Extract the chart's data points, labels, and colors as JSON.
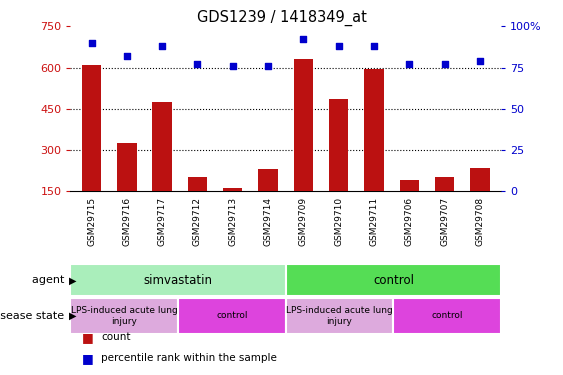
{
  "title": "GDS1239 / 1418349_at",
  "samples": [
    "GSM29715",
    "GSM29716",
    "GSM29717",
    "GSM29712",
    "GSM29713",
    "GSM29714",
    "GSM29709",
    "GSM29710",
    "GSM29711",
    "GSM29706",
    "GSM29707",
    "GSM29708"
  ],
  "counts": [
    610,
    325,
    475,
    200,
    162,
    230,
    630,
    485,
    595,
    190,
    200,
    235
  ],
  "percentiles": [
    90,
    82,
    88,
    77,
    76,
    76,
    92,
    88,
    88,
    77,
    77,
    79
  ],
  "ylim_left": [
    150,
    750
  ],
  "ylim_right": [
    0,
    100
  ],
  "yticks_left": [
    150,
    300,
    450,
    600,
    750
  ],
  "yticks_right": [
    0,
    25,
    50,
    75,
    100
  ],
  "bar_color": "#bb1111",
  "dot_color": "#0000cc",
  "agent_groups": [
    {
      "label": "simvastatin",
      "start": 0,
      "end": 6,
      "color": "#aaeebb"
    },
    {
      "label": "control",
      "start": 6,
      "end": 12,
      "color": "#55dd55"
    }
  ],
  "disease_groups": [
    {
      "label": "LPS-induced acute lung\ninjury",
      "start": 0,
      "end": 3,
      "color": "#ddaadd"
    },
    {
      "label": "control",
      "start": 3,
      "end": 6,
      "color": "#dd44dd"
    },
    {
      "label": "LPS-induced acute lung\ninjury",
      "start": 6,
      "end": 9,
      "color": "#ddaadd"
    },
    {
      "label": "control",
      "start": 9,
      "end": 12,
      "color": "#dd44dd"
    }
  ],
  "legend_items": [
    {
      "label": "count",
      "color": "#bb1111"
    },
    {
      "label": "percentile rank within the sample",
      "color": "#0000cc"
    }
  ],
  "agent_label": "agent",
  "disease_label": "disease state",
  "tick_color_left": "#cc1111",
  "tick_color_right": "#0000cc"
}
